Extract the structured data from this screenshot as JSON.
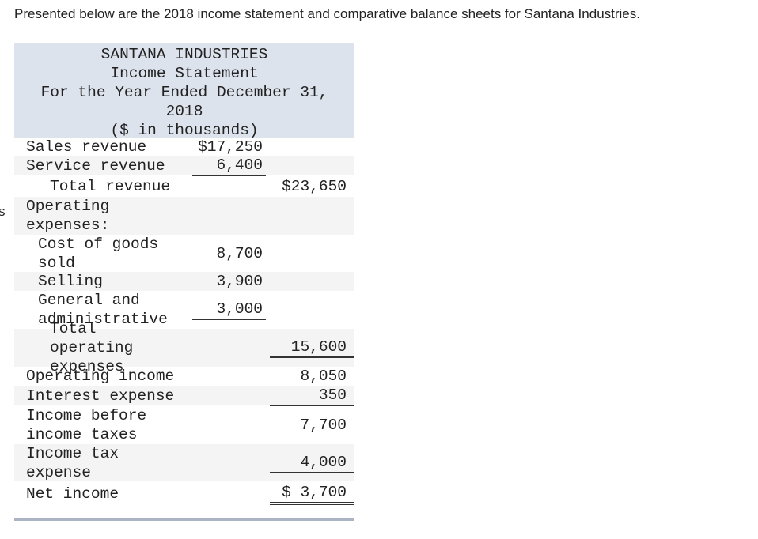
{
  "intro": "Presented below are the 2018 income statement and comparative balance sheets for Santana Industries.",
  "side_fragment": "s",
  "statement": {
    "header": [
      "SANTANA INDUSTRIES",
      "Income Statement",
      "For the Year Ended December 31, 2018",
      "($ in thousands)"
    ],
    "rows": [
      {
        "label": "Sales revenue",
        "amount": "$17,250"
      },
      {
        "label": "Service revenue",
        "amount": "6,400"
      },
      {
        "label": "Total revenue",
        "total": "$23,650"
      },
      {
        "label": "Operating expenses:"
      },
      {
        "label": "Cost of goods sold",
        "amount": "8,700"
      },
      {
        "label": "Selling",
        "amount": "3,900"
      },
      {
        "label": "General and administrative",
        "amount": "3,000"
      },
      {
        "label": "Total operating expenses",
        "total": "15,600"
      },
      {
        "label": "Operating income",
        "total": "8,050"
      },
      {
        "label": "Interest expense",
        "total": "350"
      },
      {
        "label": "Income before income taxes",
        "total": "7,700"
      },
      {
        "label": "Income tax expense",
        "total": "4,000"
      },
      {
        "label": "Net income",
        "total": "$ 3,700"
      }
    ]
  }
}
